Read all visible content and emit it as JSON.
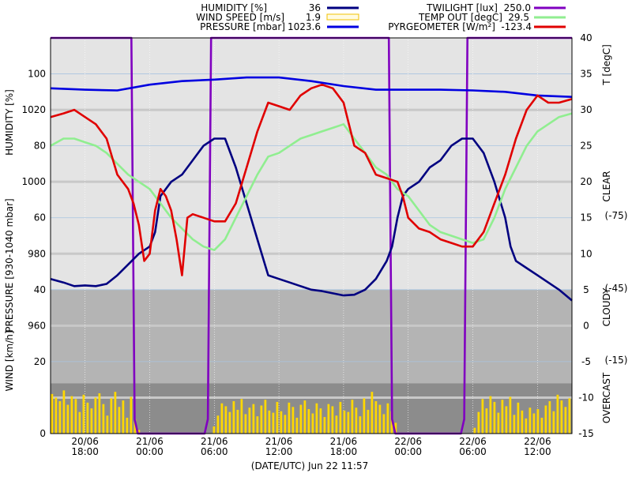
{
  "legend": [
    {
      "label": "HUMIDITY [%]",
      "value": "36",
      "color": "#000080"
    },
    {
      "label": "WIND SPEED [m/s]",
      "value": "1.9",
      "color": "#f0c000",
      "swatch": "box"
    },
    {
      "label": "PRESSURE [mbar]",
      "value": "1023.6",
      "color": "#0000e0"
    },
    {
      "label": "TWILIGHT [lux]",
      "value": "250.0",
      "color": "#8000c0"
    },
    {
      "label": "TEMP OUT [degC]",
      "value": "29.5",
      "color": "#90ee90"
    },
    {
      "label": "PYRGEOMETER [W/m²]",
      "value": "-123.4",
      "color": "#e00000"
    }
  ],
  "left_axis_titles": {
    "humidity": "HUMIDITY [%]",
    "pressure": "PRESSURE [930-1040 mbar]",
    "wind": "WIND [km/h]"
  },
  "right_axis_titles": {
    "temp": "T [degC]",
    "clear": "CLEAR",
    "cloudy": "CLOUDY",
    "overcast": "OVERCAST"
  },
  "right_sky_values": [
    "(-75)",
    "(-45)",
    "(-15)"
  ],
  "xlabel": "(DATE/UTC) Jun 22 11:57",
  "chart_data": {
    "type": "line",
    "x_ticks": [
      {
        "date": "20/06",
        "time": "18:00",
        "t": 18
      },
      {
        "date": "21/06",
        "time": "00:00",
        "t": 24
      },
      {
        "date": "21/06",
        "time": "06:00",
        "t": 30
      },
      {
        "date": "21/06",
        "time": "12:00",
        "t": 36
      },
      {
        "date": "21/06",
        "time": "18:00",
        "t": 42
      },
      {
        "date": "22/06",
        "time": "00:00",
        "t": 48
      },
      {
        "date": "22/06",
        "time": "06:00",
        "t": 54
      },
      {
        "date": "22/06",
        "time": "12:00",
        "t": 60
      }
    ],
    "x_range_hours": [
      14.8,
      63.2
    ],
    "right_axis": {
      "ylim": [
        -15,
        40
      ],
      "ticks": [
        -15,
        -10,
        -5,
        0,
        5,
        10,
        15,
        20,
        25,
        30,
        35,
        40
      ]
    },
    "left_labels": [
      {
        "text": "100",
        "r": 35
      },
      {
        "text": "1020",
        "r": 30
      },
      {
        "text": "80",
        "r": 25
      },
      {
        "text": "1000",
        "r": 20
      },
      {
        "text": "60",
        "r": 15
      },
      {
        "text": "980",
        "r": 10
      },
      {
        "text": "40",
        "r": 5
      },
      {
        "text": "960",
        "r": 0
      },
      {
        "text": "20",
        "r": -5
      },
      {
        "text": "0",
        "r": -15
      }
    ],
    "bands": [
      {
        "from": 5,
        "to": 40,
        "color": "#e4e4e4"
      },
      {
        "from": -8,
        "to": 5,
        "color": "#b4b4b4"
      },
      {
        "from": -15,
        "to": -8,
        "color": "#8c8c8c"
      }
    ],
    "pressure_gridlines_r": [
      30,
      20,
      10,
      0,
      -10
    ],
    "series": [
      {
        "name": "TWILIGHT",
        "color": "#8000c0",
        "points": [
          [
            14.8,
            40
          ],
          [
            22.3,
            40
          ],
          [
            22.6,
            -13
          ],
          [
            22.9,
            -15
          ],
          [
            29.1,
            -15
          ],
          [
            29.4,
            -13
          ],
          [
            29.7,
            40
          ],
          [
            46.2,
            40
          ],
          [
            46.5,
            -13
          ],
          [
            46.8,
            -15
          ],
          [
            52.9,
            -15
          ],
          [
            53.2,
            -13
          ],
          [
            53.5,
            40
          ],
          [
            63.2,
            40
          ]
        ]
      },
      {
        "name": "PRESSURE",
        "color": "#0000e0",
        "points": [
          [
            14.8,
            33
          ],
          [
            18,
            32.8
          ],
          [
            21,
            32.7
          ],
          [
            24,
            33.5
          ],
          [
            27,
            34
          ],
          [
            30,
            34.2
          ],
          [
            33,
            34.5
          ],
          [
            36,
            34.5
          ],
          [
            39,
            34
          ],
          [
            42,
            33.3
          ],
          [
            45,
            32.8
          ],
          [
            48,
            32.8
          ],
          [
            51,
            32.8
          ],
          [
            54,
            32.7
          ],
          [
            57,
            32.5
          ],
          [
            60,
            32
          ],
          [
            63.2,
            31.8
          ]
        ]
      },
      {
        "name": "HUMIDITY",
        "color": "#000080",
        "points": [
          [
            14.8,
            6.5
          ],
          [
            16,
            6
          ],
          [
            17,
            5.5
          ],
          [
            18,
            5.6
          ],
          [
            19,
            5.5
          ],
          [
            20,
            5.8
          ],
          [
            21,
            7
          ],
          [
            22,
            8.5
          ],
          [
            23,
            10
          ],
          [
            24,
            11
          ],
          [
            24.5,
            13
          ],
          [
            25,
            18
          ],
          [
            26,
            20
          ],
          [
            27,
            21
          ],
          [
            28,
            23
          ],
          [
            29,
            25
          ],
          [
            30,
            26
          ],
          [
            31,
            26
          ],
          [
            32,
            22
          ],
          [
            33,
            17
          ],
          [
            34,
            12
          ],
          [
            35,
            7
          ],
          [
            36,
            6.5
          ],
          [
            37,
            6
          ],
          [
            38,
            5.5
          ],
          [
            39,
            5
          ],
          [
            40,
            4.8
          ],
          [
            41,
            4.5
          ],
          [
            42,
            4.2
          ],
          [
            43,
            4.3
          ],
          [
            44,
            5
          ],
          [
            45,
            6.5
          ],
          [
            46,
            9
          ],
          [
            46.5,
            11
          ],
          [
            47,
            15
          ],
          [
            47.5,
            18
          ],
          [
            48,
            19
          ],
          [
            49,
            20
          ],
          [
            50,
            22
          ],
          [
            51,
            23
          ],
          [
            52,
            25
          ],
          [
            53,
            26
          ],
          [
            54,
            26
          ],
          [
            55,
            24
          ],
          [
            56,
            20
          ],
          [
            57,
            15
          ],
          [
            57.5,
            11
          ],
          [
            58,
            9
          ],
          [
            59,
            8
          ],
          [
            60,
            7
          ],
          [
            61,
            6
          ],
          [
            62,
            5
          ],
          [
            63.2,
            3.5
          ]
        ]
      },
      {
        "name": "TEMP OUT",
        "color": "#90ee90",
        "points": [
          [
            14.8,
            25
          ],
          [
            16,
            26
          ],
          [
            17,
            26
          ],
          [
            18,
            25.5
          ],
          [
            19,
            25
          ],
          [
            20,
            24
          ],
          [
            21,
            22.5
          ],
          [
            22,
            21
          ],
          [
            23,
            20
          ],
          [
            24,
            19
          ],
          [
            25,
            17
          ],
          [
            26,
            15
          ],
          [
            27,
            13.5
          ],
          [
            28,
            12
          ],
          [
            29,
            11
          ],
          [
            30,
            10.5
          ],
          [
            31,
            12
          ],
          [
            32,
            15
          ],
          [
            33,
            18
          ],
          [
            34,
            21
          ],
          [
            35,
            23.5
          ],
          [
            36,
            24
          ],
          [
            37,
            25
          ],
          [
            38,
            26
          ],
          [
            39,
            26.5
          ],
          [
            40,
            27
          ],
          [
            41,
            27.5
          ],
          [
            42,
            28
          ],
          [
            43,
            26
          ],
          [
            44,
            24
          ],
          [
            45,
            22
          ],
          [
            46,
            21
          ],
          [
            47,
            19
          ],
          [
            48,
            18
          ],
          [
            49,
            16
          ],
          [
            50,
            14
          ],
          [
            51,
            13
          ],
          [
            52,
            12.5
          ],
          [
            53,
            12
          ],
          [
            54,
            11.5
          ],
          [
            55,
            12
          ],
          [
            56,
            15
          ],
          [
            57,
            19
          ],
          [
            58,
            22
          ],
          [
            59,
            25
          ],
          [
            60,
            27
          ],
          [
            61,
            28
          ],
          [
            62,
            29
          ],
          [
            63.2,
            29.5
          ]
        ]
      },
      {
        "name": "PYRGEOMETER",
        "color": "#e00000",
        "points": [
          [
            14.8,
            29
          ],
          [
            16,
            29.5
          ],
          [
            17,
            30
          ],
          [
            18,
            29
          ],
          [
            19,
            28
          ],
          [
            20,
            26
          ],
          [
            21,
            21
          ],
          [
            22,
            19
          ],
          [
            22.5,
            17
          ],
          [
            23,
            14
          ],
          [
            23.5,
            9
          ],
          [
            24,
            10
          ],
          [
            24.5,
            16
          ],
          [
            25,
            19
          ],
          [
            25.5,
            18
          ],
          [
            26,
            16
          ],
          [
            26.5,
            12
          ],
          [
            27,
            7
          ],
          [
            27.5,
            15
          ],
          [
            28,
            15.5
          ],
          [
            29,
            15
          ],
          [
            30,
            14.5
          ],
          [
            31,
            14.5
          ],
          [
            32,
            17
          ],
          [
            33,
            22
          ],
          [
            34,
            27
          ],
          [
            35,
            31
          ],
          [
            36,
            30.5
          ],
          [
            37,
            30
          ],
          [
            38,
            32
          ],
          [
            39,
            33
          ],
          [
            40,
            33.5
          ],
          [
            41,
            33
          ],
          [
            42,
            31
          ],
          [
            42.5,
            28
          ],
          [
            43,
            25
          ],
          [
            44,
            24
          ],
          [
            45,
            21
          ],
          [
            46,
            20.5
          ],
          [
            47,
            20
          ],
          [
            47.5,
            18
          ],
          [
            48,
            15
          ],
          [
            49,
            13.5
          ],
          [
            50,
            13
          ],
          [
            51,
            12
          ],
          [
            52,
            11.5
          ],
          [
            53,
            11
          ],
          [
            54,
            11
          ],
          [
            55,
            13
          ],
          [
            56,
            17
          ],
          [
            57,
            21
          ],
          [
            58,
            26
          ],
          [
            59,
            30
          ],
          [
            60,
            32
          ],
          [
            61,
            31
          ],
          [
            62,
            31
          ],
          [
            63.2,
            31.5
          ]
        ]
      }
    ],
    "wind_bars": {
      "color": "#ffd800",
      "base": -15,
      "values": [
        -9.5,
        -10,
        -10.5,
        -9,
        -11,
        -9.8,
        -10.2,
        -12,
        -9.6,
        -10.7,
        -11.5,
        -10,
        -9.4,
        -10.9,
        -12.5,
        -10.1,
        -9.2,
        -11.3,
        -10.4,
        -12.8,
        -9.9,
        -13,
        -14.5,
        -15,
        -15,
        -15,
        -15,
        -15,
        -15,
        -15,
        -15,
        -15,
        -15,
        -15,
        -15,
        -15,
        -15,
        -15,
        -15,
        -15,
        -15,
        -14,
        -12.5,
        -10.8,
        -11.2,
        -12,
        -10.5,
        -11.7,
        -10.2,
        -12.3,
        -11.4,
        -10.9,
        -12.6,
        -11.1,
        -10.3,
        -11.8,
        -12.1,
        -10.6,
        -11.9,
        -12.4,
        -10.7,
        -11.3,
        -12.8,
        -11,
        -10.4,
        -11.6,
        -12.2,
        -10.8,
        -11.5,
        -12.7,
        -10.9,
        -11.2,
        -12.5,
        -10.6,
        -11.8,
        -12,
        -10.3,
        -11.4,
        -12.6,
        -10.1,
        -11.7,
        -9.2,
        -10.5,
        -11,
        -12.3,
        -10.8,
        -11.9,
        -13.5,
        -15,
        -15,
        -15,
        -15,
        -15,
        -15,
        -15,
        -15,
        -15,
        -15,
        -15,
        -15,
        -15,
        -15,
        -15,
        -15,
        -15,
        -15,
        -15,
        -14.2,
        -12,
        -10.2,
        -11.5,
        -9.8,
        -10.6,
        -12.1,
        -10.3,
        -11.2,
        -9.9,
        -12.4,
        -10.7,
        -11.8,
        -12.9,
        -11.4,
        -12.2,
        -11.6,
        -12.8,
        -11.1,
        -10.5,
        -11.9,
        -9.6,
        -10.4,
        -11.3,
        -10.1
      ]
    }
  }
}
